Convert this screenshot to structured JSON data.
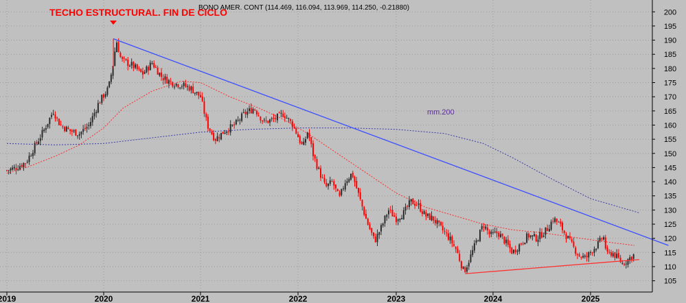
{
  "chart_data": {
    "type": "candlestick",
    "header": "BONO AMER. CONT (114.469, 116.094, 113.969, 114.250, -0.21880)",
    "annotation": "TECHO ESTRUCTURAL. FIN DE CICLO",
    "ma_label": "mm.200",
    "x_labels": [
      "2019",
      "2020",
      "2021",
      "2022",
      "2023",
      "2024",
      "2025"
    ],
    "y_ticks": [
      105,
      110,
      115,
      120,
      125,
      130,
      135,
      140,
      145,
      150,
      155,
      160,
      165,
      170,
      175,
      180,
      185,
      190,
      195,
      200
    ],
    "ylim": [
      102,
      202
    ],
    "xlim": [
      2019.0,
      2025.8
    ],
    "price_path": [
      [
        2019.0,
        144
      ],
      [
        2019.1,
        145
      ],
      [
        2019.2,
        147
      ],
      [
        2019.28,
        152
      ],
      [
        2019.38,
        158
      ],
      [
        2019.48,
        165
      ],
      [
        2019.55,
        160
      ],
      [
        2019.65,
        158
      ],
      [
        2019.75,
        157
      ],
      [
        2019.85,
        160
      ],
      [
        2019.95,
        168
      ],
      [
        2020.05,
        173
      ],
      [
        2020.1,
        182
      ],
      [
        2020.13,
        190
      ],
      [
        2020.18,
        183
      ],
      [
        2020.3,
        181
      ],
      [
        2020.4,
        178
      ],
      [
        2020.5,
        182
      ],
      [
        2020.6,
        177
      ],
      [
        2020.7,
        175
      ],
      [
        2020.82,
        174
      ],
      [
        2020.9,
        173
      ],
      [
        2021.0,
        170
      ],
      [
        2021.07,
        160
      ],
      [
        2021.15,
        155
      ],
      [
        2021.25,
        158
      ],
      [
        2021.35,
        160
      ],
      [
        2021.45,
        164
      ],
      [
        2021.55,
        166
      ],
      [
        2021.65,
        161
      ],
      [
        2021.75,
        162
      ],
      [
        2021.85,
        164
      ],
      [
        2021.95,
        160
      ],
      [
        2022.05,
        152
      ],
      [
        2022.1,
        158
      ],
      [
        2022.15,
        150
      ],
      [
        2022.2,
        145
      ],
      [
        2022.28,
        138
      ],
      [
        2022.35,
        140
      ],
      [
        2022.42,
        134
      ],
      [
        2022.48,
        140
      ],
      [
        2022.55,
        143
      ],
      [
        2022.62,
        135
      ],
      [
        2022.7,
        126
      ],
      [
        2022.78,
        119
      ],
      [
        2022.85,
        124
      ],
      [
        2022.92,
        130
      ],
      [
        2023.0,
        127
      ],
      [
        2023.08,
        129
      ],
      [
        2023.15,
        133
      ],
      [
        2023.22,
        132
      ],
      [
        2023.3,
        128
      ],
      [
        2023.38,
        127
      ],
      [
        2023.45,
        124
      ],
      [
        2023.55,
        120
      ],
      [
        2023.62,
        116
      ],
      [
        2023.7,
        108
      ],
      [
        2023.76,
        113
      ],
      [
        2023.83,
        119
      ],
      [
        2023.9,
        125
      ],
      [
        2023.97,
        121
      ],
      [
        2024.05,
        122
      ],
      [
        2024.12,
        119
      ],
      [
        2024.2,
        115
      ],
      [
        2024.28,
        118
      ],
      [
        2024.36,
        121
      ],
      [
        2024.45,
        120
      ],
      [
        2024.55,
        123
      ],
      [
        2024.62,
        127
      ],
      [
        2024.68,
        125
      ],
      [
        2024.75,
        121
      ],
      [
        2024.82,
        117
      ],
      [
        2024.88,
        114
      ],
      [
        2024.95,
        113
      ],
      [
        2025.02,
        116
      ],
      [
        2025.08,
        118
      ],
      [
        2025.13,
        121
      ],
      [
        2025.17,
        114
      ],
      [
        2025.22,
        115
      ],
      [
        2025.28,
        113
      ],
      [
        2025.33,
        111
      ],
      [
        2025.4,
        113
      ],
      [
        2025.45,
        114.25
      ]
    ],
    "ma_red": [
      [
        2019.0,
        143
      ],
      [
        2019.2,
        145
      ],
      [
        2019.5,
        149
      ],
      [
        2019.75,
        153
      ],
      [
        2020.0,
        159
      ],
      [
        2020.2,
        166
      ],
      [
        2020.5,
        172
      ],
      [
        2020.8,
        175.5
      ],
      [
        2021.0,
        175
      ],
      [
        2021.3,
        170
      ],
      [
        2021.6,
        166
      ],
      [
        2021.85,
        162
      ],
      [
        2022.1,
        157
      ],
      [
        2022.4,
        150
      ],
      [
        2022.7,
        143
      ],
      [
        2023.0,
        136
      ],
      [
        2023.3,
        131
      ],
      [
        2023.6,
        128
      ],
      [
        2023.9,
        125
      ],
      [
        2024.2,
        123
      ],
      [
        2024.5,
        122
      ],
      [
        2024.8,
        120.5
      ],
      [
        2025.1,
        119
      ],
      [
        2025.45,
        117.5
      ]
    ],
    "ma200": [
      [
        2019.0,
        153.5
      ],
      [
        2019.5,
        153
      ],
      [
        2020.0,
        153.5
      ],
      [
        2020.5,
        155.5
      ],
      [
        2021.0,
        157.5
      ],
      [
        2021.5,
        158.5
      ],
      [
        2022.0,
        159
      ],
      [
        2022.5,
        159
      ],
      [
        2023.0,
        158.5
      ],
      [
        2023.5,
        157
      ],
      [
        2023.9,
        153.5
      ],
      [
        2024.2,
        148.5
      ],
      [
        2024.6,
        141
      ],
      [
        2025.0,
        134
      ],
      [
        2025.3,
        131
      ],
      [
        2025.5,
        129
      ]
    ],
    "trendline_blue": [
      [
        2020.1,
        190.5
      ],
      [
        2025.8,
        117.5
      ]
    ],
    "trendline_red": [
      [
        2023.71,
        107.5
      ],
      [
        2025.5,
        112.5
      ]
    ],
    "colors": {
      "background": "#c0c0c0",
      "grid": "#9a9a9a",
      "candle_up": "#2b2b2b",
      "candle_down": "#ff0000",
      "ma_red": "#ff2a2a",
      "ma200": "#3a3aa8",
      "trend_blue": "#3a4dff",
      "trend_red": "#ff3030",
      "annotation": "#ff0000",
      "ma_label": "#5a2d91"
    }
  }
}
